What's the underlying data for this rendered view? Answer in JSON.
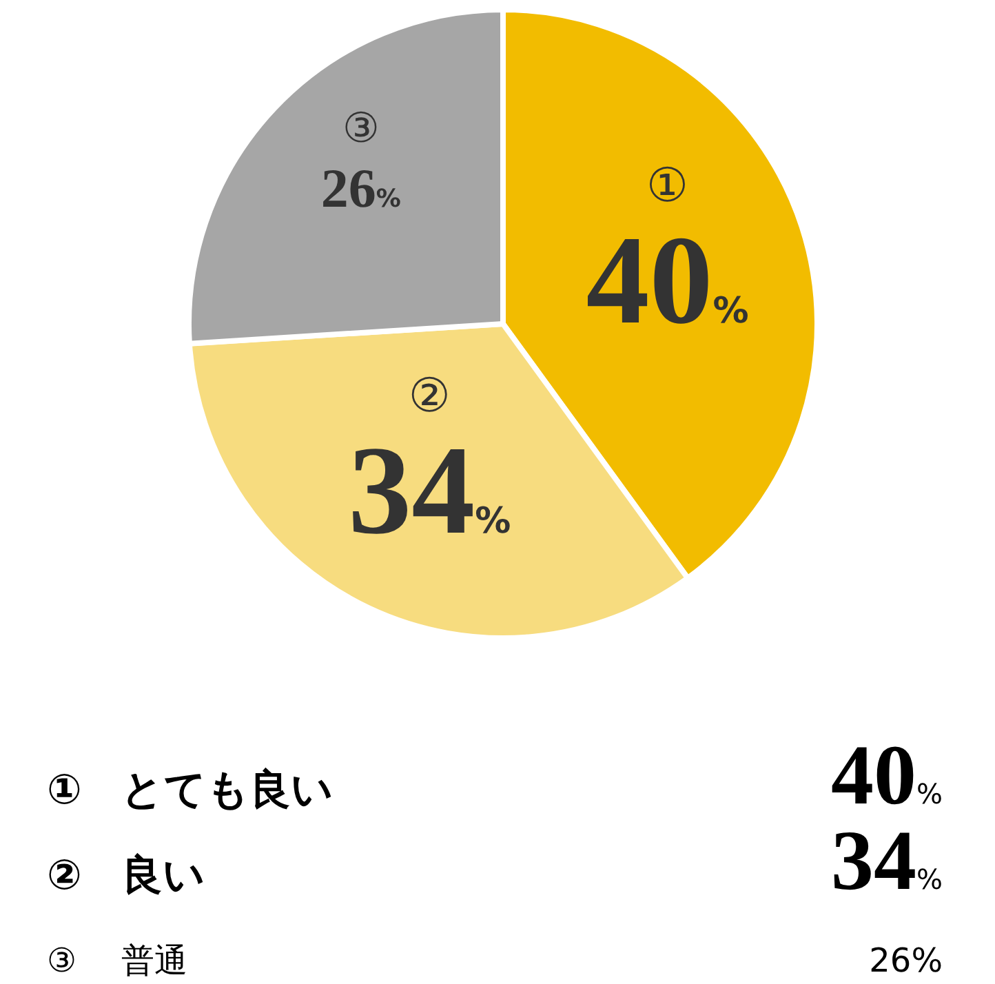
{
  "chart_data": {
    "type": "pie",
    "categories": [
      "①",
      "②",
      "③"
    ],
    "annotations": [
      "とても良い",
      "良い",
      "普通"
    ],
    "values": [
      40,
      34,
      26
    ],
    "colors": [
      "#f2bc00",
      "#f7dc7f",
      "#a6a6a6"
    ],
    "value_labels": [
      "40%",
      "34%",
      "26%"
    ]
  }
}
